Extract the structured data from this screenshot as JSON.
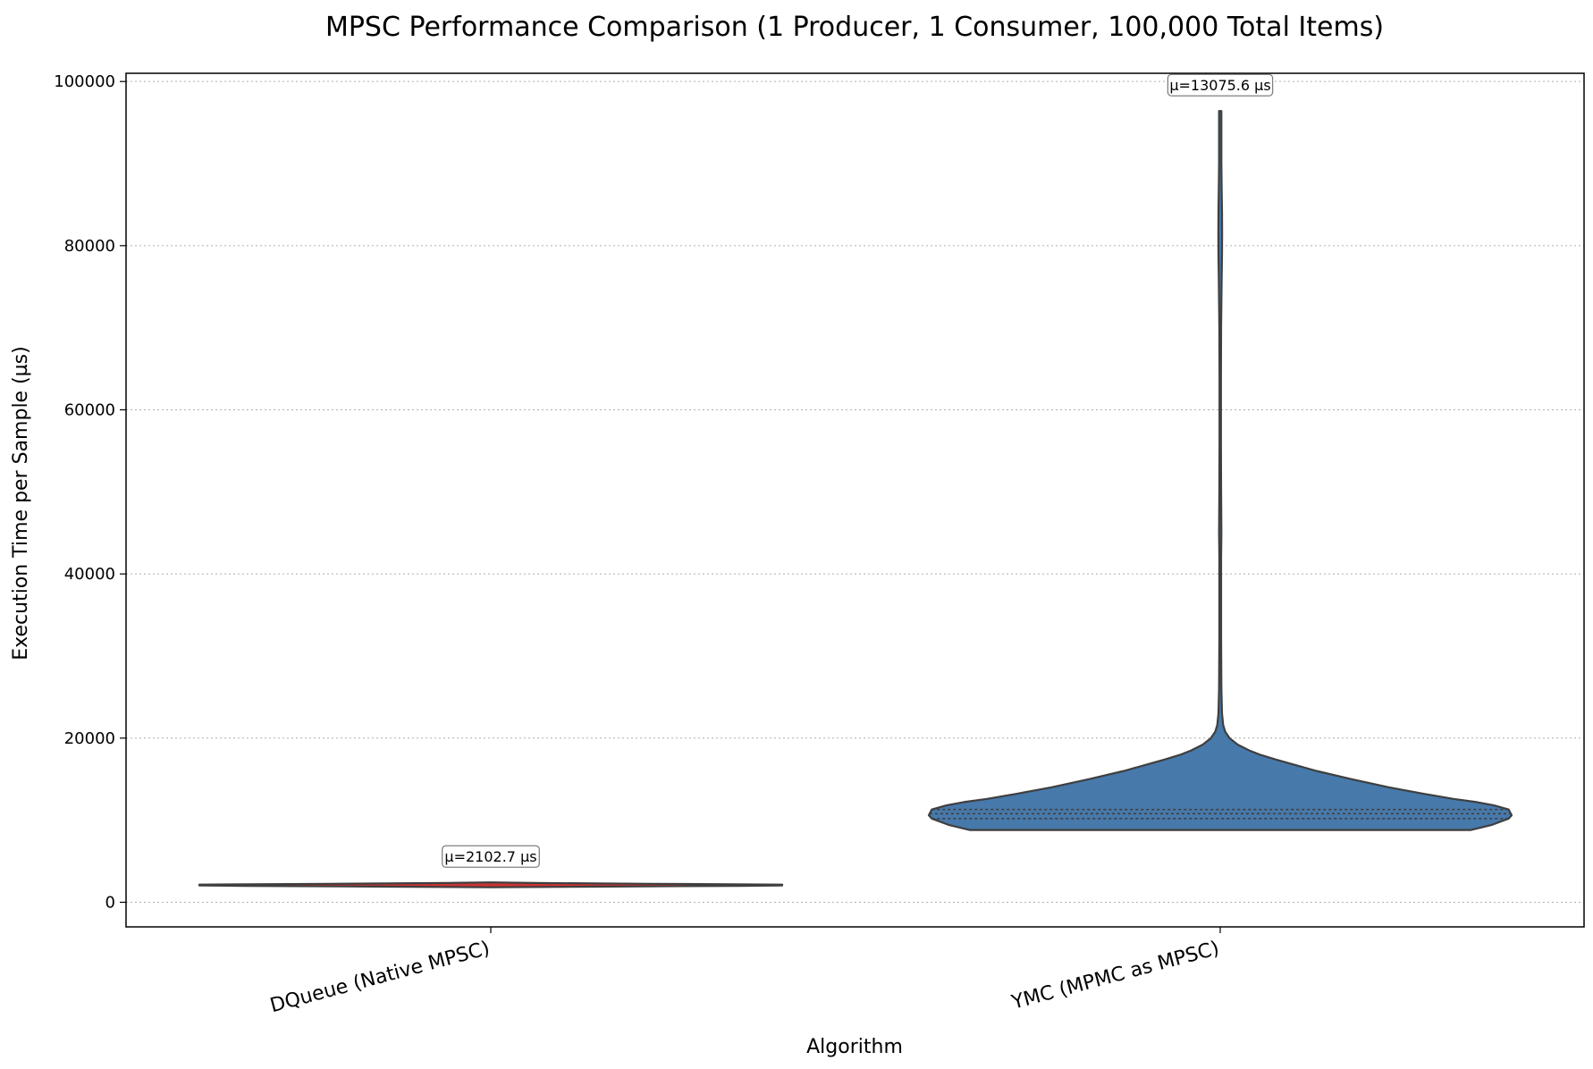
{
  "chart_data": {
    "type": "violin",
    "title": "MPSC Performance Comparison (1 Producer, 1 Consumer, 100,000 Total Items)",
    "xlabel": "Algorithm",
    "ylabel": "Execution Time per Sample (µs)",
    "ylim": [
      -3000,
      101000
    ],
    "yticks": [
      0,
      20000,
      40000,
      60000,
      80000,
      100000
    ],
    "ytick_labels": [
      "0",
      "20000",
      "40000",
      "60000",
      "80000",
      "100000"
    ],
    "grid": "horizontal dotted",
    "categories": [
      "DQueue (Native MPSC)",
      "YMC (MPMC as MPSC)"
    ],
    "series": [
      {
        "category": "DQueue (Native MPSC)",
        "color": "#cc3333",
        "mean_label": "µ=2102.7 µs",
        "mean": 2102.7,
        "density_profile": [
          [
            1820,
            0.0
          ],
          [
            1900,
            0.35
          ],
          [
            2000,
            0.85
          ],
          [
            2050,
            1.0
          ],
          [
            2150,
            1.0
          ],
          [
            2250,
            0.55
          ],
          [
            2350,
            0.15
          ],
          [
            2420,
            0.0
          ]
        ]
      },
      {
        "category": "YMC (MPMC as MPSC)",
        "color": "#4779ab",
        "mean_label": "µ=13075.6 µs",
        "mean": 13075.6,
        "quartiles": [
          10200,
          10800,
          11300
        ],
        "density_profile": [
          [
            8800,
            0.0
          ],
          [
            8801,
            0.86
          ],
          [
            9400,
            0.93
          ],
          [
            10200,
            0.99
          ],
          [
            10600,
            1.0
          ],
          [
            11300,
            0.99
          ],
          [
            11800,
            0.94
          ],
          [
            12200,
            0.88
          ],
          [
            12600,
            0.8
          ],
          [
            13200,
            0.7
          ],
          [
            14000,
            0.58
          ],
          [
            15000,
            0.45
          ],
          [
            16000,
            0.33
          ],
          [
            16800,
            0.25
          ],
          [
            17400,
            0.19
          ],
          [
            18000,
            0.135
          ],
          [
            18500,
            0.1
          ],
          [
            19200,
            0.06
          ],
          [
            20000,
            0.032
          ],
          [
            20800,
            0.017
          ],
          [
            21600,
            0.01
          ],
          [
            23000,
            0.006
          ],
          [
            26000,
            0.004
          ],
          [
            32000,
            0.003
          ],
          [
            38000,
            0.003
          ],
          [
            42000,
            0.003
          ],
          [
            45000,
            0.004
          ],
          [
            50000,
            0.003
          ],
          [
            56000,
            0.0025
          ],
          [
            64000,
            0.0025
          ],
          [
            70000,
            0.003
          ],
          [
            73000,
            0.004
          ],
          [
            76000,
            0.005
          ],
          [
            79000,
            0.006
          ],
          [
            81500,
            0.0065
          ],
          [
            84000,
            0.006
          ],
          [
            87000,
            0.005
          ],
          [
            90000,
            0.004
          ],
          [
            93000,
            0.004
          ],
          [
            96400,
            0.004
          ],
          [
            96401,
            0.0
          ]
        ]
      }
    ]
  }
}
